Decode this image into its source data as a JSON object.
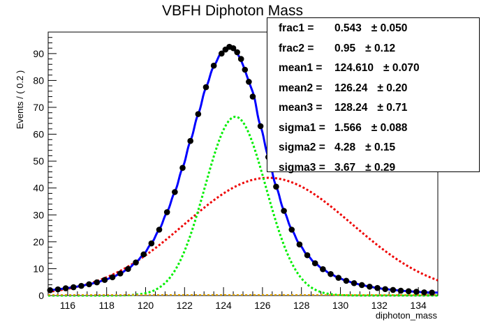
{
  "chart_data": {
    "type": "line",
    "title": "VBFH Diphoton Mass",
    "xlabel": "diphoton_mass",
    "ylabel": "Events / ( 0.2 )",
    "xlim": [
      115,
      135
    ],
    "ylim": [
      0,
      98
    ],
    "x_ticks": [
      "116",
      "118",
      "120",
      "122",
      "124",
      "126",
      "128",
      "130",
      "132",
      "134"
    ],
    "y_ticks": [
      "0",
      "10",
      "20",
      "30",
      "40",
      "50",
      "60",
      "70",
      "80",
      "90"
    ],
    "data_points": {
      "x": [
        115.1,
        115.5,
        115.9,
        116.3,
        116.7,
        117.1,
        117.5,
        117.9,
        118.3,
        118.7,
        119.1,
        119.5,
        119.9,
        120.3,
        120.7,
        121.1,
        121.5,
        121.9,
        122.3,
        122.7,
        123.1,
        123.5,
        123.9,
        124.1,
        124.3,
        124.5,
        124.7,
        124.9,
        125.1,
        125.3,
        125.5,
        125.9,
        126.3,
        126.7,
        127.1,
        127.5,
        127.9,
        128.3,
        128.7,
        129.1,
        129.5,
        129.9,
        130.3,
        130.7,
        131.1,
        131.5,
        131.9,
        132.3,
        132.7,
        133.1,
        133.5,
        133.9,
        134.3,
        134.7
      ],
      "y": [
        2.0,
        2.3,
        2.7,
        3.1,
        3.6,
        4.2,
        4.9,
        5.8,
        6.8,
        8.2,
        9.9,
        12.3,
        15.3,
        19.4,
        24.5,
        31.0,
        38.5,
        47.5,
        57.5,
        67.5,
        77.5,
        85.5,
        90.0,
        91.5,
        92.5,
        92.0,
        90.5,
        88.0,
        84.0,
        79.5,
        74.0,
        63.0,
        51.5,
        40.5,
        31.5,
        24.5,
        19.0,
        15.0,
        12.0,
        9.8,
        8.0,
        6.6,
        5.5,
        4.6,
        3.9,
        3.3,
        2.8,
        2.4,
        2.1,
        1.8,
        1.6,
        1.4,
        1.2,
        1.1
      ]
    },
    "series": [
      {
        "name": "",
        "color": "#0000ff",
        "style": "solid",
        "role": "total-fit"
      },
      {
        "name": "",
        "color": "#00ee00",
        "style": "dashed",
        "role": "gaussian-1"
      },
      {
        "name": "",
        "color": "#ee0000",
        "style": "dashed",
        "role": "gaussian-3"
      }
    ],
    "fit_params": {
      "frac1": 0.543,
      "frac2": 0.95,
      "mean1": 124.61,
      "mean2": 126.24,
      "mean3": 128.24,
      "sigma1": 1.566,
      "sigma2": 4.28,
      "sigma3": 3.67,
      "total_peak": 91.0,
      "green_peak": 66.5,
      "green_sigma": 1.566,
      "red_peak": 43.8,
      "red_mean": 126.3,
      "red_sigma": 4.3
    }
  },
  "stats": [
    {
      "name": "frac1 =",
      "value": "0.543",
      "error": "± 0.050"
    },
    {
      "name": "frac2 =",
      "value": "0.95",
      "error": "± 0.12"
    },
    {
      "name": "mean1 =",
      "value": "124.610",
      "error": "± 0.070"
    },
    {
      "name": "mean2 =",
      "value": "126.24",
      "error": "± 0.20"
    },
    {
      "name": "mean3 =",
      "value": "128.24",
      "error": "± 0.71"
    },
    {
      "name": "sigma1 =",
      "value": "1.566",
      "error": "± 0.088"
    },
    {
      "name": "sigma2 =",
      "value": "4.28",
      "error": "± 0.15"
    },
    {
      "name": "sigma3 =",
      "value": "3.67",
      "error": "± 0.29"
    }
  ],
  "colors": {
    "data": "#000000",
    "fit": "#0000ff",
    "g1": "#00ee00",
    "g3": "#ee0000",
    "frame": "#000000"
  }
}
